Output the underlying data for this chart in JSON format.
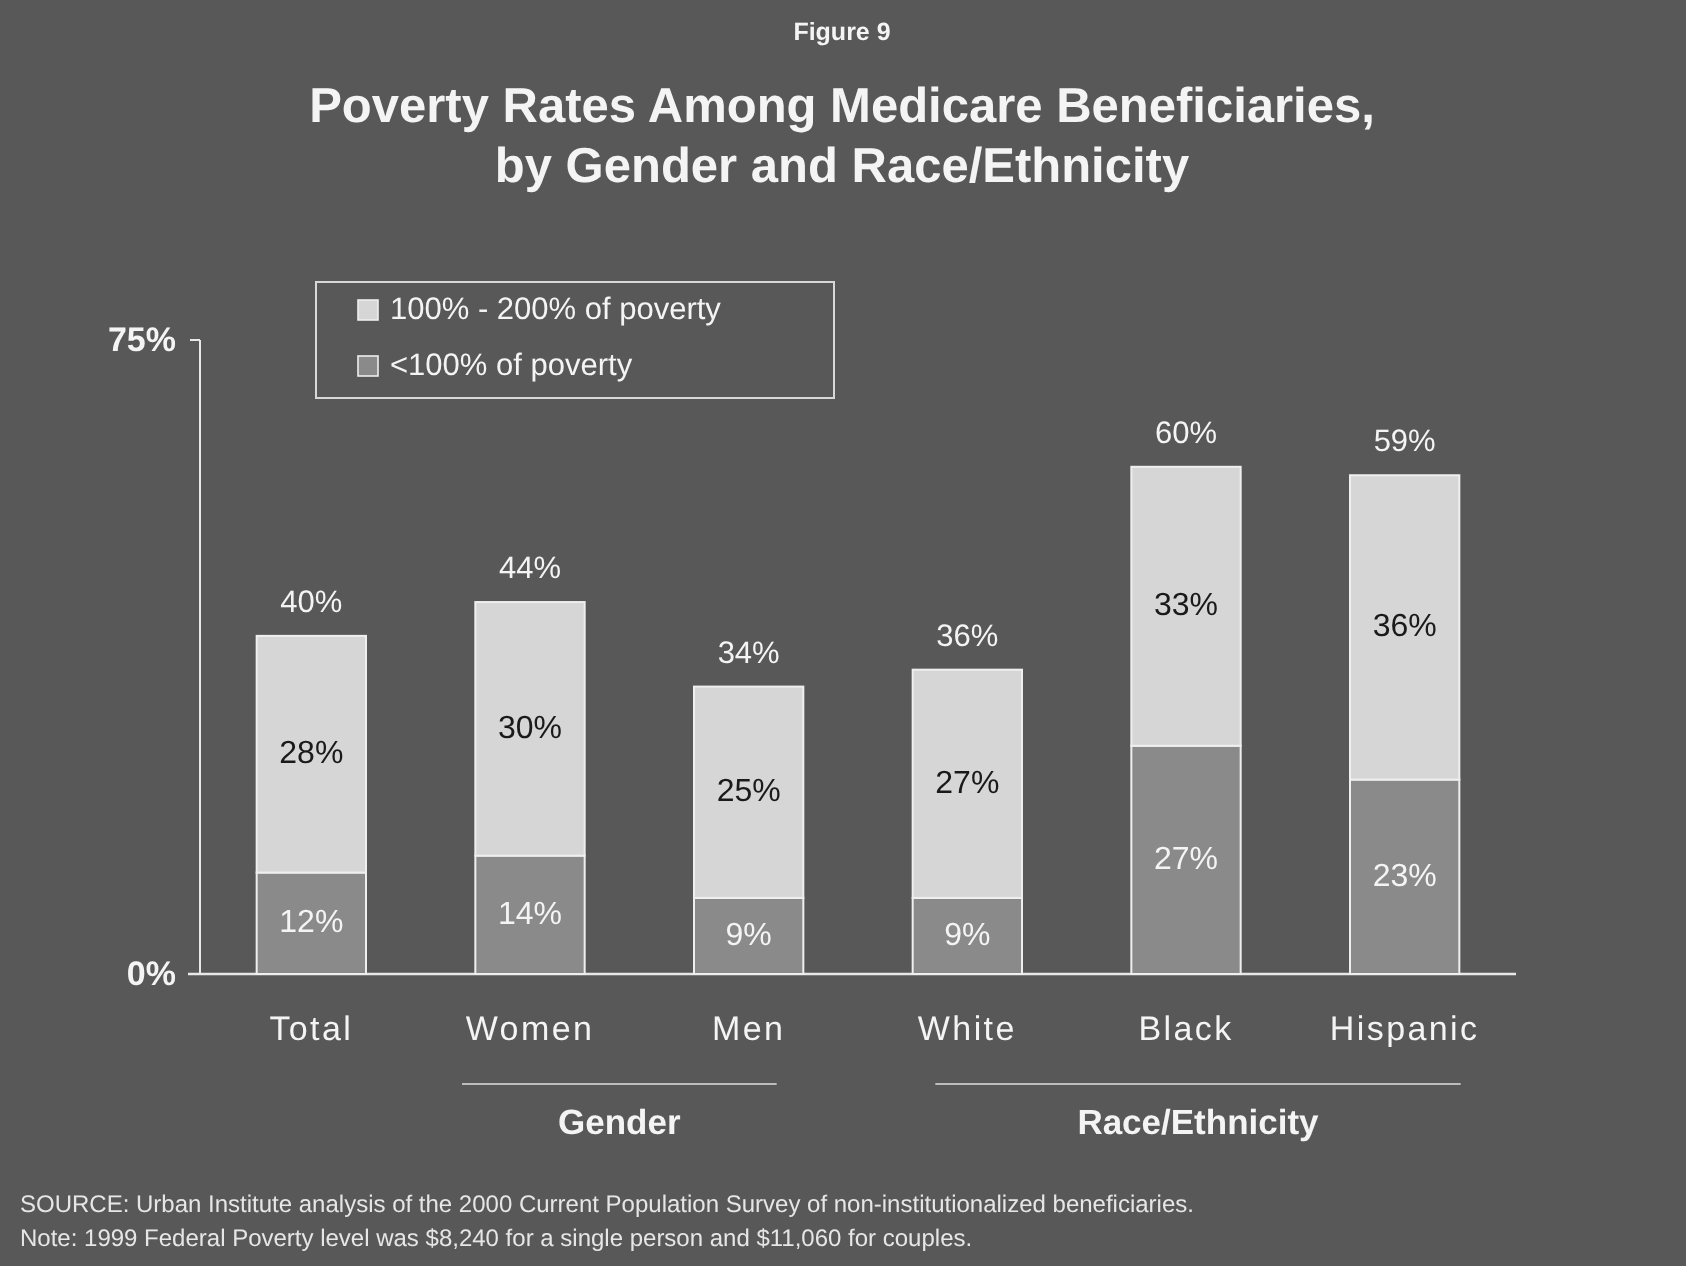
{
  "chart_data": {
    "type": "bar",
    "title": "Poverty Rates Among Medicare Beneficiaries,\nby Gender and Race/Ethnicity",
    "categories": [
      "Total",
      "Women",
      "Men",
      "White",
      "Black",
      "Hispanic"
    ],
    "series": [
      {
        "name": "<100% of poverty",
        "color": "#8a8a8a",
        "values": [
          12,
          14,
          9,
          9,
          27,
          23
        ],
        "value_labels": [
          "12%",
          "14%",
          "9%",
          "9%",
          "27%",
          "23%"
        ]
      },
      {
        "name": "100% - 200% of poverty",
        "color": "#d6d6d6",
        "values": [
          28,
          30,
          25,
          27,
          33,
          36
        ],
        "value_labels": [
          "28%",
          "30%",
          "25%",
          "27%",
          "33%",
          "36%"
        ]
      }
    ],
    "stacked": true,
    "totals": [
      "40%",
      "44%",
      "34%",
      "36%",
      "60%",
      "59%"
    ],
    "ylim": [
      0,
      75
    ],
    "yticks": [
      {
        "value": 0,
        "label": "0%"
      },
      {
        "value": 75,
        "label": "75%"
      }
    ],
    "legend": "top left",
    "annotations": [
      "Figure 9",
      "Gender",
      "Race/Ethnicity",
      "SOURCE: Urban Institute analysis of the 2000 Current Population Survey of non-institutionalized beneficiaries.",
      "Note: 1999 Federal Poverty level was $8,240 for a single person and $11,060 for couples."
    ]
  }
}
